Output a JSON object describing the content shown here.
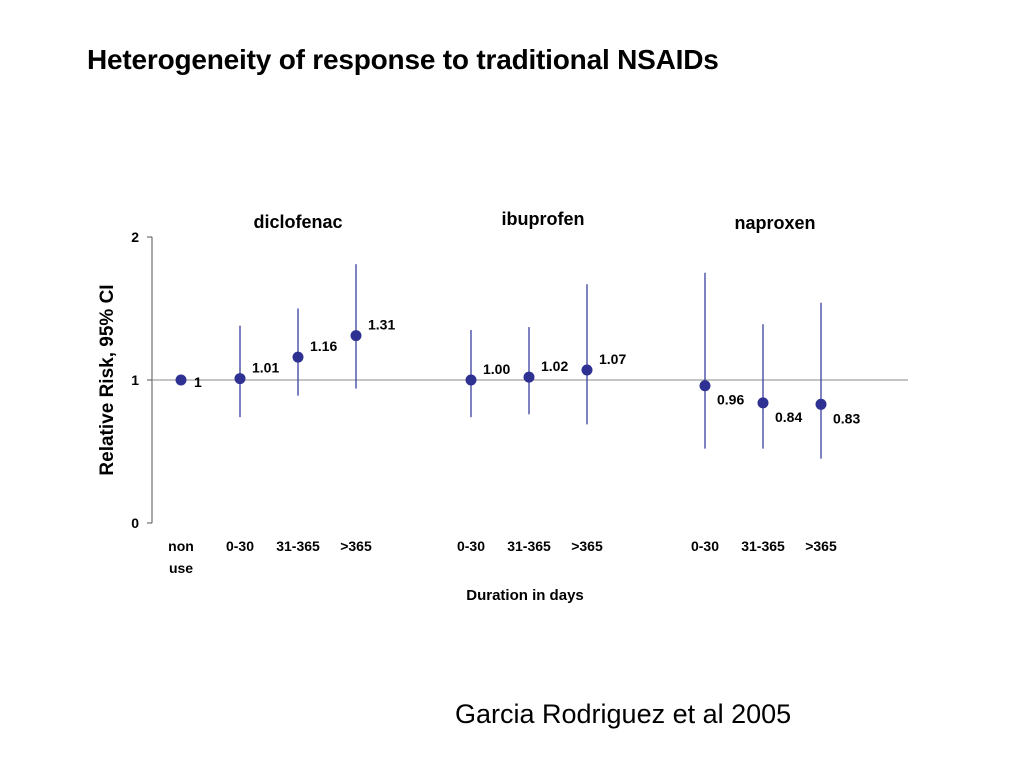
{
  "slide": {
    "title": "Heterogeneity of response to traditional NSAIDs",
    "citation": "Garcia Rodriguez et al 2005"
  },
  "chart_data": {
    "type": "scatter",
    "subtype": "point-estimate with 95% CI error bars",
    "ylabel": "Relative Risk, 95% CI",
    "xlabel": "Duration in days",
    "ylim": [
      0,
      2
    ],
    "yticks": [
      "0",
      "1",
      "2"
    ],
    "reference_line": 1,
    "grid": false,
    "colors": {
      "point": "#2e3192",
      "error_bar": "#3a3fa0",
      "axis": "#555555",
      "reference": "#888888"
    },
    "baseline": {
      "category_lines": [
        "non",
        "use"
      ],
      "value": 1,
      "label": "1"
    },
    "groups": [
      {
        "name": "diclofenac",
        "categories": [
          "0-30",
          "31-365",
          ">365"
        ],
        "values": [
          1.01,
          1.16,
          1.31
        ],
        "labels": [
          "1.01",
          "1.16",
          "1.31"
        ],
        "ci_low": [
          0.74,
          0.89,
          0.94
        ],
        "ci_high": [
          1.38,
          1.5,
          1.81
        ]
      },
      {
        "name": "ibuprofen",
        "categories": [
          "0-30",
          "31-365",
          ">365"
        ],
        "values": [
          1.0,
          1.02,
          1.07
        ],
        "labels": [
          "1.00",
          "1.02",
          "1.07"
        ],
        "ci_low": [
          0.74,
          0.76,
          0.69
        ],
        "ci_high": [
          1.35,
          1.37,
          1.67
        ]
      },
      {
        "name": "naproxen",
        "categories": [
          "0-30",
          "31-365",
          ">365"
        ],
        "values": [
          0.96,
          0.84,
          0.83
        ],
        "labels": [
          "0.96",
          "0.84",
          "0.83"
        ],
        "ci_low": [
          0.52,
          0.52,
          0.45
        ],
        "ci_high": [
          1.75,
          1.39,
          1.54
        ]
      }
    ]
  }
}
